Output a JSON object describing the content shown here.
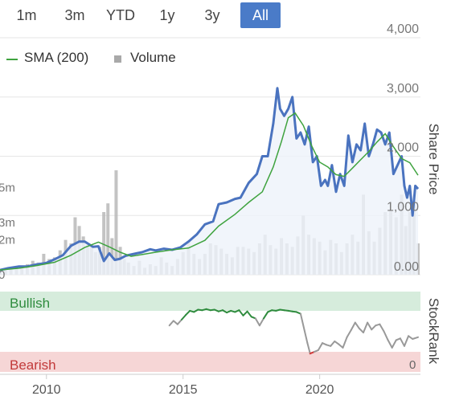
{
  "range_selector": {
    "buttons": [
      {
        "label": "1m",
        "active": false
      },
      {
        "label": "3m",
        "active": false
      },
      {
        "label": "YTD",
        "active": false
      },
      {
        "label": "1y",
        "active": false
      },
      {
        "label": "3y",
        "active": false
      },
      {
        "label": "All",
        "active": true
      }
    ]
  },
  "legend": {
    "sma_label": "SMA (200)",
    "volume_label": "Volume"
  },
  "colors": {
    "price_line": "#4a73bf",
    "sma_line": "#3fa33f",
    "volume_bar": "#b9b9b9",
    "area_fill": "#eef2fa",
    "bullish_band": "#d6ecdc",
    "bearish_band": "#f6d6d6",
    "bullish_text": "#2f8c3e",
    "bearish_text": "#c23a3a",
    "stockrank_line": "#999999",
    "stockrank_bullish_line": "#2f8c3e",
    "stockrank_bearish_line": "#d23a3a",
    "active_button": "#4a7bc8"
  },
  "chart_data": [
    {
      "type": "line",
      "axis_title_right": "Share Price",
      "y_ticks_right": [
        "4,000",
        "3,000",
        "2,000",
        "1,000",
        "0.00"
      ],
      "ylim": [
        0,
        4000
      ],
      "volume_axis_ticks_left": [
        "5m",
        "3m",
        "2m",
        "0"
      ],
      "volume_ylim": [
        0,
        6000000
      ],
      "x_ticks": [
        "2010",
        "2015",
        "2020"
      ],
      "xlim": [
        2008.3,
        2023.6
      ],
      "series": [
        {
          "name": "Share Price",
          "x": [
            2008.3,
            2008.6,
            2009.0,
            2009.3,
            2009.6,
            2010.0,
            2010.3,
            2010.6,
            2010.9,
            2011.2,
            2011.4,
            2011.7,
            2011.9,
            2012.1,
            2012.3,
            2012.5,
            2012.7,
            2012.9,
            2013.1,
            2013.3,
            2013.5,
            2013.8,
            2014.0,
            2014.3,
            2014.6,
            2014.9,
            2015.2,
            2015.5,
            2015.8,
            2016.1,
            2016.3,
            2016.6,
            2016.9,
            2017.1,
            2017.4,
            2017.7,
            2017.9,
            2018.1,
            2018.3,
            2018.45,
            2018.55,
            2018.7,
            2018.85,
            2019.0,
            2019.15,
            2019.3,
            2019.45,
            2019.6,
            2019.75,
            2019.9,
            2020.05,
            2020.2,
            2020.3,
            2020.45,
            2020.6,
            2020.75,
            2020.9,
            2021.05,
            2021.2,
            2021.35,
            2021.5,
            2021.65,
            2021.8,
            2021.95,
            2022.1,
            2022.25,
            2022.4,
            2022.55,
            2022.7,
            2022.85,
            2023.0,
            2023.1,
            2023.2,
            2023.3,
            2023.4,
            2023.5,
            2023.6
          ],
          "values": [
            80,
            110,
            140,
            140,
            170,
            200,
            260,
            330,
            490,
            560,
            560,
            470,
            480,
            230,
            360,
            250,
            270,
            320,
            340,
            360,
            380,
            430,
            410,
            440,
            420,
            460,
            560,
            680,
            850,
            900,
            1190,
            1220,
            1280,
            1300,
            1550,
            1700,
            2000,
            2000,
            2550,
            3150,
            2800,
            2680,
            2800,
            3000,
            2300,
            2400,
            2200,
            2500,
            1900,
            2000,
            1500,
            1600,
            1500,
            1850,
            1400,
            1700,
            1500,
            2350,
            1900,
            2200,
            2100,
            2550,
            2000,
            2200,
            2450,
            2400,
            2200,
            2400,
            1700,
            1850,
            2000,
            1500,
            1300,
            1500,
            1000,
            1500,
            1450
          ]
        },
        {
          "name": "SMA (200)",
          "x": [
            2008.3,
            2009.0,
            2009.6,
            2010.3,
            2010.9,
            2011.4,
            2011.9,
            2012.3,
            2012.7,
            2013.1,
            2013.5,
            2014.0,
            2014.6,
            2015.2,
            2015.8,
            2016.3,
            2016.9,
            2017.4,
            2017.9,
            2018.3,
            2018.6,
            2018.85,
            2019.1,
            2019.4,
            2019.7,
            2020.0,
            2020.3,
            2020.6,
            2020.9,
            2021.2,
            2021.5,
            2021.8,
            2022.1,
            2022.4,
            2022.7,
            2023.0,
            2023.3,
            2023.6
          ],
          "values": [
            80,
            110,
            150,
            210,
            330,
            460,
            550,
            470,
            380,
            310,
            340,
            380,
            420,
            450,
            580,
            820,
            1020,
            1220,
            1400,
            1820,
            2250,
            2650,
            2730,
            2520,
            2180,
            1900,
            1820,
            1690,
            1660,
            1800,
            1940,
            2080,
            2240,
            2380,
            2160,
            1960,
            1890,
            1680
          ]
        }
      ],
      "volume": {
        "x": [
          2008.3,
          2008.5,
          2008.7,
          2008.9,
          2009.1,
          2009.3,
          2009.5,
          2009.7,
          2009.9,
          2010.1,
          2010.3,
          2010.5,
          2010.7,
          2010.9,
          2011.05,
          2011.2,
          2011.35,
          2011.5,
          2011.65,
          2011.8,
          2011.95,
          2012.1,
          2012.25,
          2012.4,
          2012.55,
          2012.7,
          2012.85,
          2013.0,
          2013.2,
          2013.4,
          2013.6,
          2013.8,
          2014.0,
          2014.2,
          2014.4,
          2014.6,
          2014.8,
          2015.0,
          2015.2,
          2015.4,
          2015.6,
          2015.8,
          2016.0,
          2016.2,
          2016.4,
          2016.6,
          2016.8,
          2017.0,
          2017.2,
          2017.4,
          2017.6,
          2017.8,
          2018.0,
          2018.2,
          2018.4,
          2018.6,
          2018.8,
          2019.0,
          2019.2,
          2019.4,
          2019.6,
          2019.8,
          2020.0,
          2020.2,
          2020.4,
          2020.6,
          2020.8,
          2021.0,
          2021.2,
          2021.4,
          2021.6,
          2021.8,
          2022.0,
          2022.2,
          2022.4,
          2022.6,
          2022.8,
          2023.0,
          2023.15,
          2023.3,
          2023.45,
          2023.6
        ],
        "values": [
          300000,
          250000,
          400000,
          350000,
          500000,
          600000,
          800000,
          700000,
          1200000,
          900000,
          1000000,
          1400000,
          2000000,
          1800000,
          3300000,
          2800000,
          2200000,
          1700000,
          1600000,
          1300000,
          1600000,
          3600000,
          4100000,
          2100000,
          6000000,
          1600000,
          900000,
          700000,
          500000,
          800000,
          400000,
          600000,
          500000,
          1000000,
          700000,
          500000,
          900000,
          1300000,
          1900000,
          1200000,
          900000,
          1200000,
          1800000,
          1700000,
          1500000,
          1200000,
          1000000,
          1600000,
          1600000,
          1500000,
          1300000,
          1800000,
          2300000,
          1700000,
          1500000,
          2100000,
          1800000,
          1600000,
          2200000,
          3400000,
          2300000,
          2100000,
          1900000,
          1400000,
          2000000,
          1800000,
          1300000,
          1800000,
          2300000,
          1900000,
          4600000,
          2500000,
          1900000,
          2700000,
          3600000,
          3700000,
          3300000,
          4600000,
          2800000,
          3600000,
          4100000,
          1800000
        ]
      }
    },
    {
      "type": "line",
      "axis_title_right": "StockRank",
      "band_labels": {
        "top": "Bullish",
        "bottom": "Bearish"
      },
      "y_ticks_right": [
        "0"
      ],
      "ylim": [
        0,
        100
      ],
      "x_ticks": [
        "2010",
        "2015",
        "2020"
      ],
      "xlim": [
        2008.3,
        2023.6
      ],
      "series": [
        {
          "name": "StockRank",
          "x": [
            2014.5,
            2014.65,
            2014.8,
            2014.95,
            2015.1,
            2015.25,
            2015.4,
            2015.55,
            2015.7,
            2015.85,
            2016.0,
            2016.15,
            2016.3,
            2016.45,
            2016.6,
            2016.75,
            2016.9,
            2017.05,
            2017.2,
            2017.35,
            2017.5,
            2017.65,
            2017.8,
            2017.95,
            2018.1,
            2018.25,
            2018.4,
            2018.55,
            2018.7,
            2018.85,
            2019.0,
            2019.15,
            2019.3,
            2019.45,
            2019.55,
            2019.65,
            2019.8,
            2019.95,
            2020.1,
            2020.25,
            2020.4,
            2020.55,
            2020.7,
            2020.85,
            2021.0,
            2021.15,
            2021.3,
            2021.45,
            2021.6,
            2021.75,
            2021.9,
            2022.05,
            2022.2,
            2022.35,
            2022.5,
            2022.65,
            2022.8,
            2022.95,
            2023.1,
            2023.25,
            2023.4,
            2023.6
          ],
          "values": [
            60,
            68,
            62,
            70,
            78,
            85,
            83,
            87,
            86,
            88,
            86,
            87,
            84,
            86,
            82,
            85,
            83,
            86,
            77,
            84,
            75,
            72,
            60,
            72,
            83,
            86,
            85,
            87,
            86,
            85,
            84,
            83,
            80,
            50,
            30,
            12,
            15,
            18,
            30,
            27,
            25,
            33,
            28,
            22,
            40,
            52,
            65,
            55,
            48,
            65,
            53,
            60,
            62,
            50,
            35,
            22,
            35,
            38,
            25,
            42,
            37,
            40
          ]
        }
      ]
    }
  ]
}
